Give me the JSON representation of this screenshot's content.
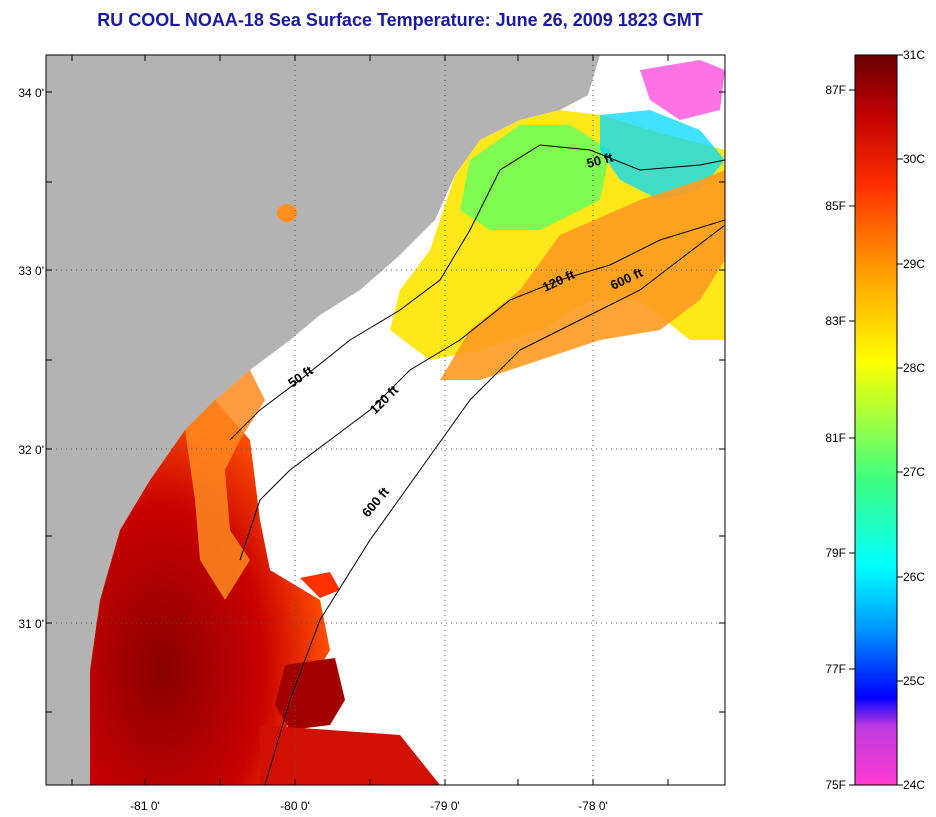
{
  "title": "RU COOL  NOAA-18  Sea Surface Temperature:  June 26, 2009 1823 GMT",
  "map": {
    "lon_labels": [
      "-81 0'",
      "-80 0'",
      "-79 0'",
      "-78 0'"
    ],
    "lat_labels": [
      "34 0'",
      "33 0'",
      "32 0'",
      "31 0'"
    ],
    "contour_labels": [
      "50 ft",
      "120 ft",
      "600 ft",
      "50 ft",
      "120 ft",
      "600 ft"
    ]
  },
  "colorbar": {
    "fahrenheit_labels": [
      "87F",
      "85F",
      "83F",
      "81F",
      "79F",
      "77F",
      "75F"
    ],
    "celsius_labels": [
      "31C",
      "30C",
      "29C",
      "28C",
      "27C",
      "26C",
      "25C",
      "24C"
    ],
    "gradient": [
      "#ff3ad0",
      "#8a2be2",
      "#0000ff",
      "#00a0ff",
      "#00ffff",
      "#40ff80",
      "#ffff00",
      "#ffa000",
      "#ff3000",
      "#c00000",
      "#7a0000"
    ]
  }
}
